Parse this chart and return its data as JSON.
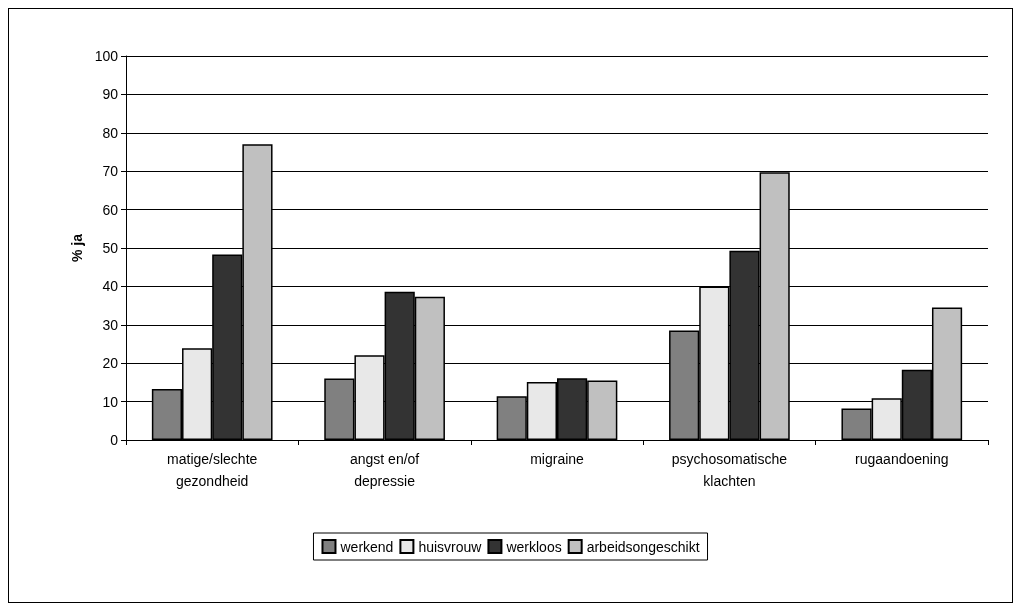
{
  "chart_data": {
    "type": "bar",
    "ylabel": "% ja",
    "categories": [
      "matige/slechte\ngezondheid",
      "angst en/of\ndepressie",
      "migraine",
      "psychosomatische\nklachten",
      "rugaandoening"
    ],
    "series": [
      {
        "name": "werkend",
        "color": "#808080",
        "values": [
          13.3,
          16.0,
          11.4,
          28.5,
          8.2
        ]
      },
      {
        "name": "huisvrouw",
        "color": "#e8e8e8",
        "values": [
          23.9,
          22.1,
          15.1,
          40.0,
          10.9
        ]
      },
      {
        "name": "werkloos",
        "color": "#333333",
        "values": [
          48.3,
          38.6,
          16.1,
          49.3,
          18.3
        ]
      },
      {
        "name": "arbeidsongeschikt",
        "color": "#c0c0c0",
        "values": [
          77.0,
          37.3,
          15.5,
          69.7,
          34.5
        ]
      }
    ],
    "ylim": [
      0,
      100
    ],
    "yticks": [
      0,
      10,
      20,
      30,
      40,
      50,
      60,
      70,
      80,
      90,
      100
    ],
    "grid": "y",
    "legend": "bottom"
  }
}
